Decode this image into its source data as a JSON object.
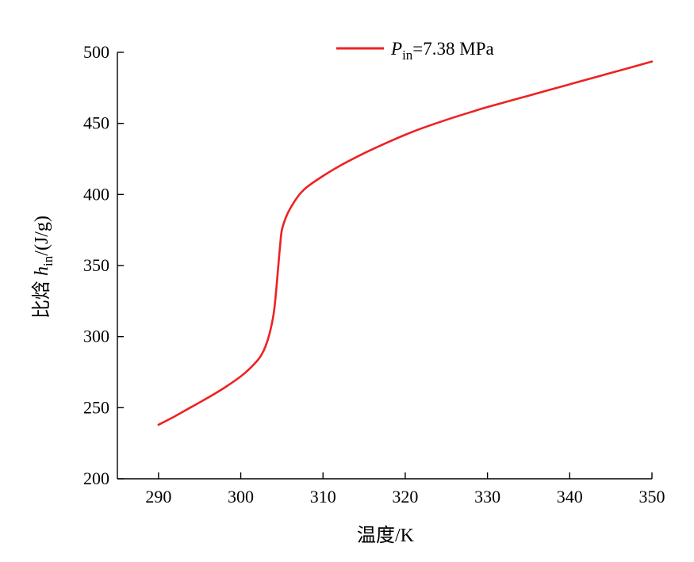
{
  "chart_data": {
    "type": "line",
    "xlabel": "温度/K",
    "ylabel": {
      "prefix": "比焓 ",
      "symbol": "h",
      "subscript": "in",
      "unit": "/(J/g)"
    },
    "xlim": [
      285,
      350
    ],
    "ylim": [
      200,
      500
    ],
    "xticks": [
      290,
      300,
      310,
      320,
      330,
      340,
      350
    ],
    "yticks": [
      200,
      250,
      300,
      350,
      400,
      450,
      500
    ],
    "grid": false,
    "legend_position": "top",
    "series": [
      {
        "name": "Pin=7.38 MPa",
        "legend": {
          "symbol": "P",
          "subscript": "in",
          "rest": "=7.38 MPa"
        },
        "color": "#ee2222",
        "x": [
          290,
          292,
          294,
          296,
          298,
          300,
          301,
          302,
          302.5,
          303,
          303.5,
          304,
          304.3,
          304.6,
          304.8,
          305,
          305.5,
          306,
          307,
          308,
          310,
          312,
          315,
          318,
          320,
          322,
          325,
          328,
          330,
          335,
          340,
          345,
          350
        ],
        "values": [
          238,
          244,
          250.5,
          257,
          264,
          272,
          277,
          283,
          287,
          293,
          302,
          316,
          332,
          352,
          365,
          375,
          384,
          390,
          399,
          405,
          413,
          420,
          429,
          437,
          442,
          446.5,
          452.5,
          458,
          461.5,
          469.5,
          477.5,
          485.5,
          493.5
        ]
      }
    ]
  }
}
